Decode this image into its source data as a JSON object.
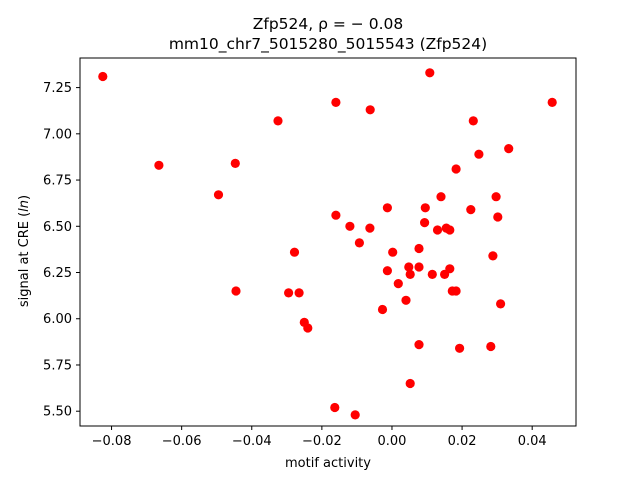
{
  "chart_data": {
    "type": "scatter",
    "title_line1": "Zfp524, ρ = − 0.08",
    "title_line2": "mm10_chr7_5015280_5015543 (Zfp524)",
    "xlabel": "motif activity",
    "ylabel": "signal at CRE (ln)",
    "xlim": [
      -0.089,
      0.0525
    ],
    "ylim": [
      5.42,
      7.41
    ],
    "xticks": [
      -0.08,
      -0.06,
      -0.04,
      -0.02,
      0.0,
      0.02,
      0.04
    ],
    "xtick_labels": [
      "−0.08",
      "−0.06",
      "−0.04",
      "−0.02",
      "0.00",
      "0.02",
      "0.04"
    ],
    "yticks": [
      5.5,
      5.75,
      6.0,
      6.25,
      6.5,
      6.75,
      7.0,
      7.25
    ],
    "ytick_labels": [
      "5.50",
      "5.75",
      "6.00",
      "6.25",
      "6.50",
      "6.75",
      "7.00",
      "7.25"
    ],
    "grid": false,
    "marker_color": "#ff0000",
    "points": [
      {
        "x": -0.0825,
        "y": 7.31
      },
      {
        "x": -0.0665,
        "y": 6.83
      },
      {
        "x": -0.0495,
        "y": 6.67
      },
      {
        "x": -0.0447,
        "y": 6.84
      },
      {
        "x": -0.0445,
        "y": 6.15
      },
      {
        "x": -0.0325,
        "y": 7.07
      },
      {
        "x": -0.0295,
        "y": 6.14
      },
      {
        "x": -0.0278,
        "y": 6.36
      },
      {
        "x": -0.0265,
        "y": 6.14
      },
      {
        "x": -0.025,
        "y": 5.98
      },
      {
        "x": -0.024,
        "y": 5.95
      },
      {
        "x": -0.016,
        "y": 7.17
      },
      {
        "x": -0.016,
        "y": 6.56
      },
      {
        "x": -0.0163,
        "y": 5.52
      },
      {
        "x": -0.012,
        "y": 6.5
      },
      {
        "x": -0.0105,
        "y": 5.48
      },
      {
        "x": -0.0093,
        "y": 6.41
      },
      {
        "x": -0.0062,
        "y": 7.13
      },
      {
        "x": -0.0063,
        "y": 6.49
      },
      {
        "x": -0.0027,
        "y": 6.05
      },
      {
        "x": -0.0013,
        "y": 6.6
      },
      {
        "x": -0.0013,
        "y": 6.26
      },
      {
        "x": 0.0002,
        "y": 6.36
      },
      {
        "x": 0.0018,
        "y": 6.19
      },
      {
        "x": 0.004,
        "y": 6.1
      },
      {
        "x": 0.0048,
        "y": 6.28
      },
      {
        "x": 0.0052,
        "y": 6.24
      },
      {
        "x": 0.0052,
        "y": 5.65
      },
      {
        "x": 0.0077,
        "y": 6.38
      },
      {
        "x": 0.0077,
        "y": 6.28
      },
      {
        "x": 0.0077,
        "y": 5.86
      },
      {
        "x": 0.0093,
        "y": 6.52
      },
      {
        "x": 0.0095,
        "y": 6.6
      },
      {
        "x": 0.0108,
        "y": 7.33
      },
      {
        "x": 0.0115,
        "y": 6.24
      },
      {
        "x": 0.013,
        "y": 6.48
      },
      {
        "x": 0.014,
        "y": 6.66
      },
      {
        "x": 0.015,
        "y": 6.24
      },
      {
        "x": 0.0155,
        "y": 6.49
      },
      {
        "x": 0.0165,
        "y": 6.48
      },
      {
        "x": 0.0165,
        "y": 6.27
      },
      {
        "x": 0.0172,
        "y": 6.15
      },
      {
        "x": 0.0183,
        "y": 6.15
      },
      {
        "x": 0.0183,
        "y": 6.81
      },
      {
        "x": 0.0193,
        "y": 5.84
      },
      {
        "x": 0.0225,
        "y": 6.59
      },
      {
        "x": 0.0232,
        "y": 7.07
      },
      {
        "x": 0.0248,
        "y": 6.89
      },
      {
        "x": 0.0282,
        "y": 5.85
      },
      {
        "x": 0.0288,
        "y": 6.34
      },
      {
        "x": 0.0297,
        "y": 6.66
      },
      {
        "x": 0.0302,
        "y": 6.55
      },
      {
        "x": 0.031,
        "y": 6.08
      },
      {
        "x": 0.0333,
        "y": 6.92
      },
      {
        "x": 0.0457,
        "y": 7.17
      }
    ]
  }
}
